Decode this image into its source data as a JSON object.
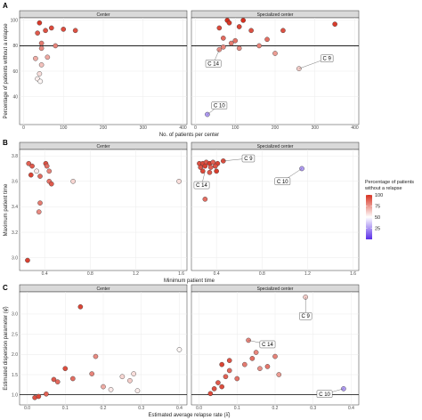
{
  "chart_data": [
    {
      "id": "A",
      "type": "scatter",
      "panel_label": "A",
      "facets": [
        "Center",
        "Specialized center"
      ],
      "xlabel": "No. of patients per center",
      "ylabel": "Percentage of patients without a relapse",
      "xlim": [
        -10,
        410
      ],
      "ylim": [
        18,
        102
      ],
      "xticks": [
        0,
        100,
        200,
        300,
        400
      ],
      "yticks": [
        40,
        60,
        80,
        100
      ],
      "hline": 80,
      "grid": true,
      "points": {
        "Center": [
          {
            "x": 35,
            "y": 90
          },
          {
            "x": 40,
            "y": 98
          },
          {
            "x": 45,
            "y": 82
          },
          {
            "x": 55,
            "y": 92
          },
          {
            "x": 70,
            "y": 94
          },
          {
            "x": 80,
            "y": 80
          },
          {
            "x": 100,
            "y": 93
          },
          {
            "x": 130,
            "y": 92
          },
          {
            "x": 45,
            "y": 78
          },
          {
            "x": 30,
            "y": 70
          },
          {
            "x": 60,
            "y": 71
          },
          {
            "x": 45,
            "y": 65
          },
          {
            "x": 40,
            "y": 58
          },
          {
            "x": 35,
            "y": 54
          },
          {
            "x": 42,
            "y": 52
          }
        ],
        "Specialized center": [
          {
            "x": 60,
            "y": 94
          },
          {
            "x": 80,
            "y": 100
          },
          {
            "x": 85,
            "y": 98
          },
          {
            "x": 110,
            "y": 95
          },
          {
            "x": 120,
            "y": 100
          },
          {
            "x": 140,
            "y": 92
          },
          {
            "x": 220,
            "y": 92
          },
          {
            "x": 350,
            "y": 97
          },
          {
            "x": 70,
            "y": 86
          },
          {
            "x": 90,
            "y": 82
          },
          {
            "x": 100,
            "y": 84
          },
          {
            "x": 180,
            "y": 85
          },
          {
            "x": 60,
            "y": 77
          },
          {
            "x": 70,
            "y": 79
          },
          {
            "x": 110,
            "y": 78
          },
          {
            "x": 160,
            "y": 80
          },
          {
            "x": 200,
            "y": 74
          },
          {
            "x": 260,
            "y": 62
          },
          {
            "x": 30,
            "y": 26
          }
        ]
      },
      "annotations": [
        {
          "facet": "Specialized center",
          "label": "C 14",
          "x": 60,
          "y": 77,
          "lx": 45,
          "ly": 66
        },
        {
          "facet": "Specialized center",
          "label": "C 9",
          "x": 260,
          "y": 62,
          "lx": 330,
          "ly": 70
        },
        {
          "facet": "Specialized center",
          "label": "C 10",
          "x": 30,
          "y": 26,
          "lx": 60,
          "ly": 33
        }
      ]
    },
    {
      "id": "B",
      "type": "scatter",
      "panel_label": "B",
      "facets": [
        "Center",
        "Specialized center"
      ],
      "xlabel": "Minimum patient time",
      "ylabel": "Maximum patient time",
      "xlim": [
        0.18,
        1.65
      ],
      "ylim": [
        2.9,
        3.85
      ],
      "xticks": [
        0.4,
        0.8,
        1.2,
        1.6
      ],
      "yticks": [
        3.0,
        3.2,
        3.4,
        3.6,
        3.8
      ],
      "grid": true,
      "points": {
        "Center": [
          {
            "x": 0.26,
            "y": 3.74
          },
          {
            "x": 0.29,
            "y": 3.72
          },
          {
            "x": 0.33,
            "y": 3.68
          },
          {
            "x": 0.41,
            "y": 3.74
          },
          {
            "x": 0.42,
            "y": 3.72
          },
          {
            "x": 0.44,
            "y": 3.68
          },
          {
            "x": 0.28,
            "y": 3.65
          },
          {
            "x": 0.36,
            "y": 3.64
          },
          {
            "x": 0.44,
            "y": 3.6
          },
          {
            "x": 0.46,
            "y": 3.58
          },
          {
            "x": 0.65,
            "y": 3.6
          },
          {
            "x": 1.58,
            "y": 3.6
          },
          {
            "x": 0.36,
            "y": 3.43
          },
          {
            "x": 0.35,
            "y": 3.36
          },
          {
            "x": 0.25,
            "y": 2.98
          }
        ],
        "Specialized center": [
          {
            "x": 0.25,
            "y": 3.74
          },
          {
            "x": 0.28,
            "y": 3.74
          },
          {
            "x": 0.31,
            "y": 3.75
          },
          {
            "x": 0.34,
            "y": 3.74
          },
          {
            "x": 0.37,
            "y": 3.75
          },
          {
            "x": 0.41,
            "y": 3.74
          },
          {
            "x": 0.46,
            "y": 3.76
          },
          {
            "x": 0.26,
            "y": 3.71
          },
          {
            "x": 0.3,
            "y": 3.72
          },
          {
            "x": 0.35,
            "y": 3.71
          },
          {
            "x": 0.39,
            "y": 3.72
          },
          {
            "x": 0.28,
            "y": 3.68
          },
          {
            "x": 0.34,
            "y": 3.67
          },
          {
            "x": 0.4,
            "y": 3.68
          },
          {
            "x": 0.3,
            "y": 3.46
          },
          {
            "x": 1.15,
            "y": 3.7
          }
        ]
      },
      "annotations": [
        {
          "facet": "Specialized center",
          "label": "C 9",
          "x": 0.46,
          "y": 3.76,
          "lx": 0.68,
          "ly": 3.78
        },
        {
          "facet": "Specialized center",
          "label": "C 14",
          "x": 0.3,
          "y": 3.68,
          "lx": 0.27,
          "ly": 3.57
        },
        {
          "facet": "Specialized center",
          "label": "C 10",
          "x": 1.15,
          "y": 3.7,
          "lx": 0.98,
          "ly": 3.6
        }
      ]
    },
    {
      "id": "C",
      "type": "scatter",
      "panel_label": "C",
      "facets": [
        "Center",
        "Specialized center"
      ],
      "xlabel": "Estimated average relapse rate (λ̂)",
      "ylabel": "Estimated dispersion parameter (φ̂)",
      "xlim": [
        -0.02,
        0.42
      ],
      "ylim": [
        0.75,
        3.55
      ],
      "xticks": [
        0.0,
        0.1,
        0.2,
        0.3,
        0.4
      ],
      "yticks": [
        1.0,
        1.5,
        2.0,
        2.5,
        3.0
      ],
      "hline": 1,
      "grid": true,
      "points": {
        "Center": [
          {
            "x": 0.02,
            "y": 0.93
          },
          {
            "x": 0.03,
            "y": 0.96
          },
          {
            "x": 0.05,
            "y": 1.02
          },
          {
            "x": 0.07,
            "y": 1.38
          },
          {
            "x": 0.08,
            "y": 1.32
          },
          {
            "x": 0.1,
            "y": 1.65
          },
          {
            "x": 0.12,
            "y": 1.4
          },
          {
            "x": 0.14,
            "y": 3.18
          },
          {
            "x": 0.17,
            "y": 1.52
          },
          {
            "x": 0.18,
            "y": 1.95
          },
          {
            "x": 0.2,
            "y": 1.2
          },
          {
            "x": 0.22,
            "y": 1.13
          },
          {
            "x": 0.25,
            "y": 1.45
          },
          {
            "x": 0.27,
            "y": 1.35
          },
          {
            "x": 0.28,
            "y": 1.52
          },
          {
            "x": 0.29,
            "y": 1.1
          },
          {
            "x": 0.4,
            "y": 2.12
          }
        ],
        "Specialized center": [
          {
            "x": 0.03,
            "y": 1.03
          },
          {
            "x": 0.04,
            "y": 1.15
          },
          {
            "x": 0.05,
            "y": 1.3
          },
          {
            "x": 0.06,
            "y": 1.2
          },
          {
            "x": 0.07,
            "y": 1.45
          },
          {
            "x": 0.08,
            "y": 1.6
          },
          {
            "x": 0.06,
            "y": 1.75
          },
          {
            "x": 0.08,
            "y": 1.85
          },
          {
            "x": 0.1,
            "y": 1.4
          },
          {
            "x": 0.12,
            "y": 1.75
          },
          {
            "x": 0.13,
            "y": 2.35
          },
          {
            "x": 0.14,
            "y": 1.9
          },
          {
            "x": 0.15,
            "y": 2.05
          },
          {
            "x": 0.16,
            "y": 1.65
          },
          {
            "x": 0.18,
            "y": 1.7
          },
          {
            "x": 0.2,
            "y": 1.95
          },
          {
            "x": 0.21,
            "y": 1.5
          },
          {
            "x": 0.28,
            "y": 3.42
          },
          {
            "x": 0.38,
            "y": 1.15
          }
        ]
      },
      "annotations": [
        {
          "facet": "Specialized center",
          "label": "C 14",
          "x": 0.13,
          "y": 2.35,
          "lx": 0.18,
          "ly": 2.25
        },
        {
          "facet": "Specialized center",
          "label": "C 9",
          "x": 0.28,
          "y": 3.42,
          "lx": 0.28,
          "ly": 2.95
        },
        {
          "facet": "Specialized center",
          "label": "C 10",
          "x": 0.38,
          "y": 1.15,
          "lx": 0.33,
          "ly": 1.02
        }
      ]
    }
  ],
  "legend": {
    "title_line1": "Percentage of patients",
    "title_line2": "without a relapse",
    "ticks": [
      100,
      75,
      50,
      25
    ],
    "colors": {
      "high": "#d7301f",
      "mid": "#ffffff",
      "low": "#5a2ee8"
    },
    "placement": "right"
  }
}
